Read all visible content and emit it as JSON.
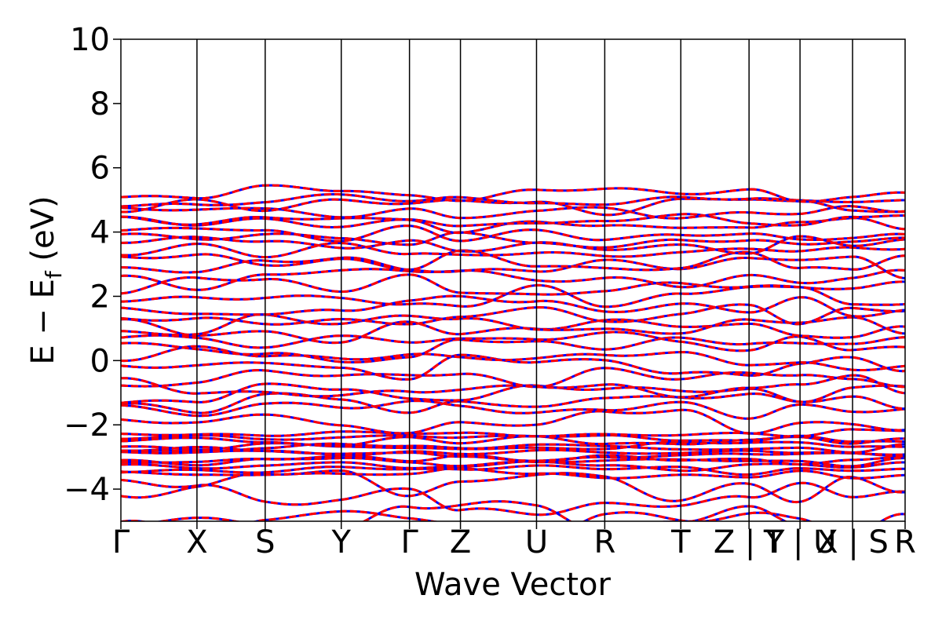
{
  "chart_data": {
    "type": "line",
    "xlabel": "Wave Vector",
    "ylabel_parts": [
      "E − E",
      "f",
      " (eV)"
    ],
    "ylim": [
      -5,
      10
    ],
    "yticks": [
      {
        "value": 10,
        "label": "10"
      },
      {
        "value": 8,
        "label": "8"
      },
      {
        "value": 6,
        "label": "6"
      },
      {
        "value": 4,
        "label": "4"
      },
      {
        "value": 2,
        "label": "2"
      },
      {
        "value": 0,
        "label": "0"
      },
      {
        "value": -2,
        "label": "−2"
      },
      {
        "value": -4,
        "label": "−4"
      }
    ],
    "kpath": [
      {
        "label": "Γ",
        "k": 0.0
      },
      {
        "label": "X",
        "k": 0.097
      },
      {
        "label": "S",
        "k": 0.184
      },
      {
        "label": "Y",
        "k": 0.281
      },
      {
        "label": "Γ",
        "k": 0.368
      },
      {
        "label": "Z",
        "k": 0.433
      },
      {
        "label": "U",
        "k": 0.53
      },
      {
        "label": "R",
        "k": 0.617
      },
      {
        "label": "T",
        "k": 0.714
      },
      {
        "label": "Z | Y",
        "k": 0.801
      },
      {
        "label": "T | U",
        "k": 0.866
      },
      {
        "label": "X | S",
        "k": 0.933
      },
      {
        "label": "R",
        "k": 1.0
      }
    ],
    "grid": false,
    "legend": "none",
    "series": [
      {
        "style": "solid",
        "color": "#0000ff"
      },
      {
        "style": "dashed",
        "color": "#ff0000"
      }
    ],
    "band_edges": {
      "valence_dense_region": [
        -3.5,
        -2.2
      ],
      "top_band_max": 5.5,
      "lowest_visible_band": -5.0
    }
  }
}
